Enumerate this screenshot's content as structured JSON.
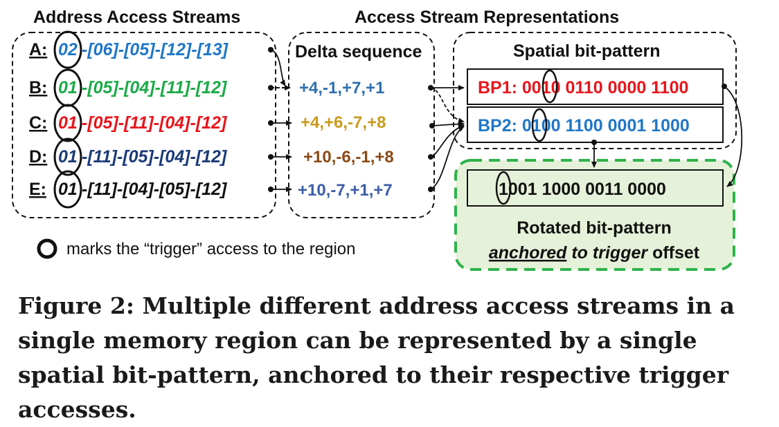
{
  "headers": {
    "streams": "Address Access Streams",
    "representations": "Access Stream Representations"
  },
  "streams": [
    {
      "label": "A:",
      "trigger": "02",
      "rest": "-[06]-[05]-[12]-[13]",
      "color": "#1f77c8"
    },
    {
      "label": "B:",
      "trigger": "01",
      "rest": "-[05]-[04]-[11]-[12]",
      "color": "#1aab47"
    },
    {
      "label": "C:",
      "trigger": "01",
      "rest": "-[05]-[11]-[04]-[12]",
      "color": "#e8151b"
    },
    {
      "label": "D:",
      "trigger": "01",
      "rest": "-[11]-[05]-[04]-[12]",
      "color": "#1b3a78"
    },
    {
      "label": "E:",
      "trigger": "01",
      "rest": "-[11]-[04]-[05]-[12]",
      "color": "#111111"
    }
  ],
  "delta": {
    "title": "Delta sequence",
    "items": [
      {
        "text": "+4,-1,+7,+1",
        "color": "#2f6fb0"
      },
      {
        "text": "+4,+6,-7,+8",
        "color": "#c99a1c"
      },
      {
        "text": "+10,-6,-1,+8",
        "color": "#8a4a16"
      },
      {
        "text": "+10,-7,+1,+7",
        "color": "#3c5da8"
      }
    ]
  },
  "spatial": {
    "title": "Spatial bit-pattern",
    "bp1": {
      "text": "BP1: 0010 0110 0000 1100",
      "color": "#e8151b"
    },
    "bp2": {
      "text": "BP2: 0100 1100 0001 1000",
      "color": "#1f77c8"
    }
  },
  "rotated": {
    "value": "1001 1000 0011 0000",
    "title": "Rotated bit-pattern",
    "line2_anchored": "anchored",
    "line2_to": "to",
    "line2_trigger": "trigger",
    "line2_offset": "offset"
  },
  "legend": {
    "text": "marks the “trigger” access to the region"
  },
  "caption": "Figure 2: Multiple different address access streams in a single memory region can be represented by a single spatial bit-pattern, anchored to their respective trigger accesses."
}
